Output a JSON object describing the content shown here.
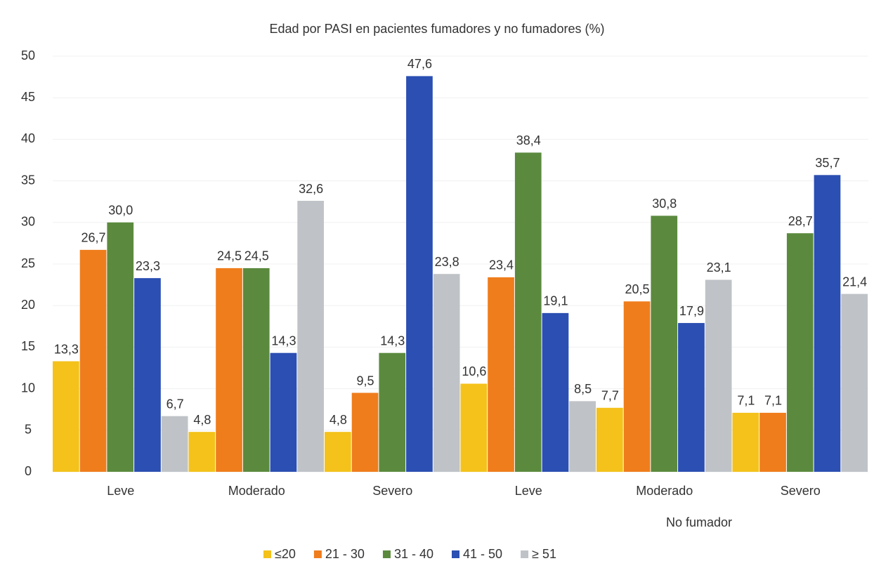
{
  "chart_data": {
    "type": "bar",
    "title": "Edad por PASI en pacientes fumadores y no fumadores (%)",
    "annotation": "No fumador",
    "categories": [
      "Leve",
      "Moderado",
      "Severo",
      "Leve",
      "Moderado",
      "Severo"
    ],
    "series": [
      {
        "name": "≤20",
        "color": "#f4c21b",
        "values": [
          13.3,
          4.8,
          4.8,
          10.6,
          7.7,
          7.1
        ],
        "value_labels": [
          "13,3",
          "4,8",
          "4,8",
          "10,6",
          "7,7",
          "7,1"
        ]
      },
      {
        "name": "21 - 30",
        "color": "#ef7d1c",
        "values": [
          26.7,
          24.5,
          9.5,
          23.4,
          20.5,
          7.1
        ],
        "value_labels": [
          "26,7",
          "24,5",
          "9,5",
          "23,4",
          "20,5",
          "7,1"
        ]
      },
      {
        "name": "31 - 40",
        "color": "#5b8a3e",
        "values": [
          30.0,
          24.5,
          14.3,
          38.4,
          30.8,
          28.7
        ],
        "value_labels": [
          "30,0",
          "24,5",
          "14,3",
          "38,4",
          "30,8",
          "28,7"
        ]
      },
      {
        "name": "41 - 50",
        "color": "#2b4fb2",
        "values": [
          23.3,
          14.3,
          47.6,
          19.1,
          17.9,
          35.7
        ],
        "value_labels": [
          "23,3",
          "14,3",
          "47,6",
          "19,1",
          "17,9",
          "35,7"
        ]
      },
      {
        "name": "≥ 51",
        "color": "#bfc3c7",
        "values": [
          6.7,
          32.6,
          23.8,
          8.5,
          23.1,
          21.4
        ],
        "value_labels": [
          "6,7",
          "32,6",
          "23,8",
          "8,5",
          "23,1",
          "21,4"
        ]
      }
    ],
    "ylim": [
      0,
      50
    ],
    "yticks": [
      0,
      5,
      10,
      15,
      20,
      25,
      30,
      35,
      40,
      45,
      50
    ],
    "grid": true,
    "legend": "bottom"
  }
}
